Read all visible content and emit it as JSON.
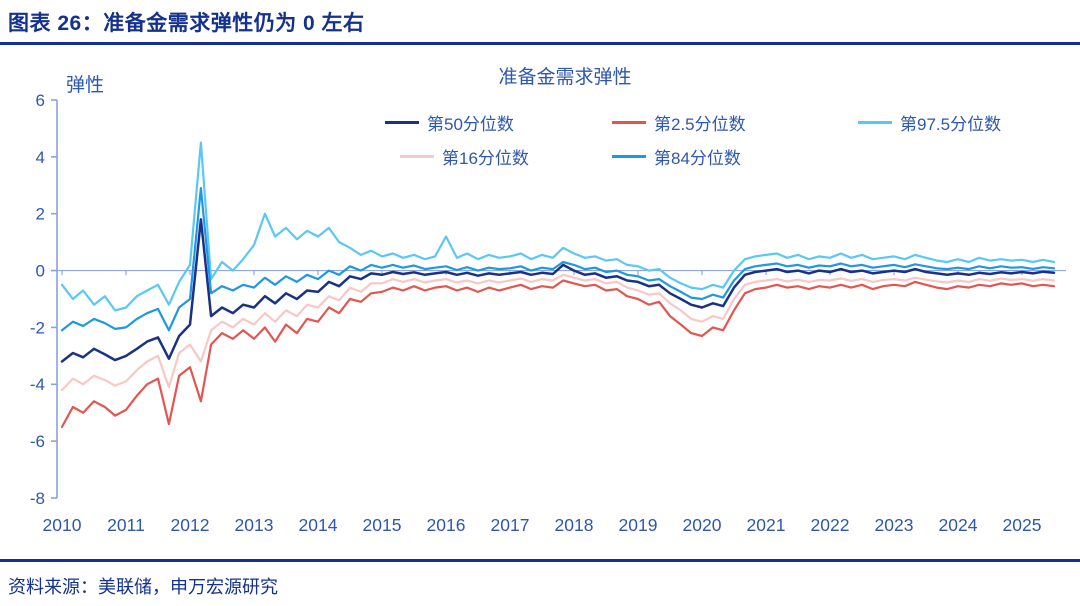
{
  "header": {
    "title": "图表 26：准备金需求弹性仍为 0 左右"
  },
  "source": {
    "label": "资料来源：美联储，申万宏源研究"
  },
  "colors": {
    "accent_dark_blue": "#14318E",
    "chart_text_blue": "#2D57B0",
    "axis_line": "#8AA2DB",
    "zero_line": "#8FA6DE"
  },
  "chart_data": {
    "type": "line",
    "title": "准备金需求弹性",
    "ylabel": "弹性",
    "xlabel": "",
    "ylim": [
      -8,
      6
    ],
    "yticks": [
      6,
      4,
      2,
      0,
      -2,
      -4,
      -6,
      -8
    ],
    "xticks": [
      2010,
      2011,
      2012,
      2013,
      2014,
      2015,
      2016,
      2017,
      2018,
      2019,
      2020,
      2021,
      2022,
      2023,
      2024,
      2025
    ],
    "grid": "none",
    "zero_reference_line": 0,
    "legend_position": "top",
    "x": [
      2010.0,
      2010.17,
      2010.33,
      2010.5,
      2010.67,
      2010.83,
      2011.0,
      2011.17,
      2011.33,
      2011.5,
      2011.67,
      2011.83,
      2012.0,
      2012.17,
      2012.33,
      2012.5,
      2012.67,
      2012.83,
      2013.0,
      2013.17,
      2013.33,
      2013.5,
      2013.67,
      2013.83,
      2014.0,
      2014.17,
      2014.33,
      2014.5,
      2014.67,
      2014.83,
      2015.0,
      2015.17,
      2015.33,
      2015.5,
      2015.67,
      2015.83,
      2016.0,
      2016.17,
      2016.33,
      2016.5,
      2016.67,
      2016.83,
      2017.0,
      2017.17,
      2017.33,
      2017.5,
      2017.67,
      2017.83,
      2018.0,
      2018.17,
      2018.33,
      2018.5,
      2018.67,
      2018.83,
      2019.0,
      2019.17,
      2019.33,
      2019.5,
      2019.67,
      2019.83,
      2020.0,
      2020.17,
      2020.33,
      2020.5,
      2020.67,
      2020.83,
      2021.0,
      2021.17,
      2021.33,
      2021.5,
      2021.67,
      2021.83,
      2022.0,
      2022.17,
      2022.33,
      2022.5,
      2022.67,
      2022.83,
      2023.0,
      2023.17,
      2023.33,
      2023.5,
      2023.67,
      2023.83,
      2024.0,
      2024.17,
      2024.33,
      2024.5,
      2024.67,
      2024.83,
      2025.0,
      2025.17,
      2025.33,
      2025.5
    ],
    "series": [
      {
        "name": "第50分位数",
        "color": "#1B3284",
        "values": [
          -3.2,
          -2.9,
          -3.05,
          -2.75,
          -2.95,
          -3.15,
          -3.0,
          -2.75,
          -2.5,
          -2.35,
          -3.1,
          -2.3,
          -1.9,
          1.8,
          -1.6,
          -1.3,
          -1.5,
          -1.2,
          -1.3,
          -0.9,
          -1.15,
          -0.8,
          -1.0,
          -0.7,
          -0.75,
          -0.4,
          -0.55,
          -0.2,
          -0.3,
          -0.1,
          -0.15,
          -0.05,
          -0.12,
          -0.06,
          -0.15,
          -0.1,
          -0.05,
          -0.15,
          -0.08,
          -0.18,
          -0.1,
          -0.15,
          -0.1,
          -0.05,
          -0.15,
          -0.08,
          -0.12,
          0.2,
          0.0,
          -0.15,
          -0.1,
          -0.25,
          -0.2,
          -0.35,
          -0.4,
          -0.55,
          -0.5,
          -0.8,
          -1.0,
          -1.2,
          -1.3,
          -1.15,
          -1.25,
          -0.6,
          -0.15,
          -0.05,
          0.0,
          0.05,
          -0.05,
          0.0,
          -0.1,
          0.0,
          -0.05,
          0.05,
          -0.05,
          0.0,
          -0.1,
          -0.05,
          0.0,
          -0.05,
          0.05,
          -0.05,
          -0.1,
          -0.15,
          -0.1,
          -0.15,
          -0.08,
          -0.12,
          -0.06,
          -0.1,
          -0.05,
          -0.1,
          -0.04,
          -0.08
        ]
      },
      {
        "name": "第2.5分位数",
        "color": "#E25650",
        "values": [
          -5.5,
          -4.8,
          -5.0,
          -4.6,
          -4.8,
          -5.1,
          -4.9,
          -4.4,
          -4.0,
          -3.8,
          -5.4,
          -3.7,
          -3.4,
          -4.6,
          -2.6,
          -2.2,
          -2.4,
          -2.1,
          -2.4,
          -2.0,
          -2.5,
          -1.9,
          -2.2,
          -1.7,
          -1.8,
          -1.3,
          -1.5,
          -1.0,
          -1.1,
          -0.8,
          -0.75,
          -0.6,
          -0.7,
          -0.55,
          -0.7,
          -0.6,
          -0.55,
          -0.7,
          -0.6,
          -0.75,
          -0.6,
          -0.7,
          -0.6,
          -0.5,
          -0.65,
          -0.55,
          -0.6,
          -0.35,
          -0.45,
          -0.55,
          -0.5,
          -0.7,
          -0.65,
          -0.9,
          -1.0,
          -1.2,
          -1.1,
          -1.6,
          -1.9,
          -2.2,
          -2.3,
          -2.0,
          -2.1,
          -1.4,
          -0.8,
          -0.65,
          -0.6,
          -0.5,
          -0.6,
          -0.55,
          -0.65,
          -0.55,
          -0.6,
          -0.5,
          -0.6,
          -0.5,
          -0.65,
          -0.55,
          -0.5,
          -0.55,
          -0.4,
          -0.5,
          -0.6,
          -0.65,
          -0.55,
          -0.6,
          -0.5,
          -0.55,
          -0.45,
          -0.5,
          -0.45,
          -0.55,
          -0.5,
          -0.55
        ]
      },
      {
        "name": "第97.5分位数",
        "color": "#5AC8F5",
        "values": [
          -0.5,
          -1.0,
          -0.7,
          -1.2,
          -0.9,
          -1.4,
          -1.3,
          -0.9,
          -0.7,
          -0.5,
          -1.2,
          -0.4,
          0.2,
          4.5,
          -0.3,
          0.3,
          0.0,
          0.4,
          0.9,
          2.0,
          1.2,
          1.5,
          1.1,
          1.4,
          1.2,
          1.5,
          1.0,
          0.8,
          0.55,
          0.7,
          0.5,
          0.6,
          0.45,
          0.55,
          0.4,
          0.5,
          1.2,
          0.45,
          0.6,
          0.4,
          0.55,
          0.45,
          0.5,
          0.6,
          0.4,
          0.55,
          0.45,
          0.8,
          0.6,
          0.45,
          0.5,
          0.35,
          0.4,
          0.2,
          0.15,
          0.0,
          0.05,
          -0.25,
          -0.45,
          -0.6,
          -0.65,
          -0.5,
          -0.6,
          0.0,
          0.4,
          0.5,
          0.55,
          0.6,
          0.45,
          0.55,
          0.4,
          0.5,
          0.45,
          0.6,
          0.45,
          0.55,
          0.4,
          0.45,
          0.5,
          0.4,
          0.55,
          0.45,
          0.35,
          0.3,
          0.4,
          0.3,
          0.45,
          0.35,
          0.4,
          0.35,
          0.38,
          0.3,
          0.38,
          0.3
        ]
      },
      {
        "name": "第16分位数",
        "color": "#F7C8C6",
        "values": [
          -4.2,
          -3.8,
          -4.0,
          -3.7,
          -3.85,
          -4.05,
          -3.9,
          -3.5,
          -3.2,
          -3.0,
          -4.1,
          -2.9,
          -2.6,
          -3.2,
          -2.1,
          -1.8,
          -2.0,
          -1.7,
          -1.9,
          -1.5,
          -1.8,
          -1.4,
          -1.6,
          -1.2,
          -1.3,
          -0.9,
          -1.05,
          -0.6,
          -0.75,
          -0.45,
          -0.45,
          -0.3,
          -0.4,
          -0.3,
          -0.42,
          -0.35,
          -0.3,
          -0.42,
          -0.35,
          -0.45,
          -0.35,
          -0.42,
          -0.35,
          -0.28,
          -0.4,
          -0.3,
          -0.35,
          -0.15,
          -0.25,
          -0.35,
          -0.3,
          -0.45,
          -0.4,
          -0.6,
          -0.7,
          -0.85,
          -0.8,
          -1.15,
          -1.4,
          -1.7,
          -1.8,
          -1.6,
          -1.7,
          -1.0,
          -0.5,
          -0.4,
          -0.35,
          -0.3,
          -0.38,
          -0.32,
          -0.4,
          -0.33,
          -0.35,
          -0.28,
          -0.36,
          -0.3,
          -0.4,
          -0.33,
          -0.3,
          -0.35,
          -0.25,
          -0.32,
          -0.38,
          -0.42,
          -0.35,
          -0.4,
          -0.3,
          -0.36,
          -0.28,
          -0.33,
          -0.3,
          -0.36,
          -0.3,
          -0.35
        ]
      },
      {
        "name": "第84分位数",
        "color": "#2097E3",
        "values": [
          -2.1,
          -1.8,
          -1.95,
          -1.7,
          -1.85,
          -2.05,
          -2.0,
          -1.7,
          -1.5,
          -1.35,
          -2.1,
          -1.3,
          -1.0,
          2.9,
          -0.8,
          -0.55,
          -0.7,
          -0.5,
          -0.6,
          -0.25,
          -0.5,
          -0.2,
          -0.4,
          -0.15,
          -0.3,
          0.0,
          -0.15,
          0.15,
          0.0,
          0.2,
          0.1,
          0.2,
          0.1,
          0.18,
          0.05,
          0.1,
          0.15,
          0.02,
          0.12,
          0.0,
          0.1,
          0.05,
          0.08,
          0.15,
          0.0,
          0.1,
          0.05,
          0.3,
          0.2,
          0.05,
          0.1,
          -0.05,
          0.0,
          -0.15,
          -0.2,
          -0.35,
          -0.3,
          -0.55,
          -0.75,
          -0.95,
          -1.0,
          -0.85,
          -0.95,
          -0.35,
          0.05,
          0.15,
          0.2,
          0.25,
          0.15,
          0.2,
          0.1,
          0.18,
          0.15,
          0.25,
          0.15,
          0.2,
          0.1,
          0.15,
          0.2,
          0.12,
          0.22,
          0.15,
          0.08,
          0.05,
          0.1,
          0.05,
          0.15,
          0.08,
          0.15,
          0.1,
          0.12,
          0.06,
          0.12,
          0.08
        ]
      }
    ]
  }
}
